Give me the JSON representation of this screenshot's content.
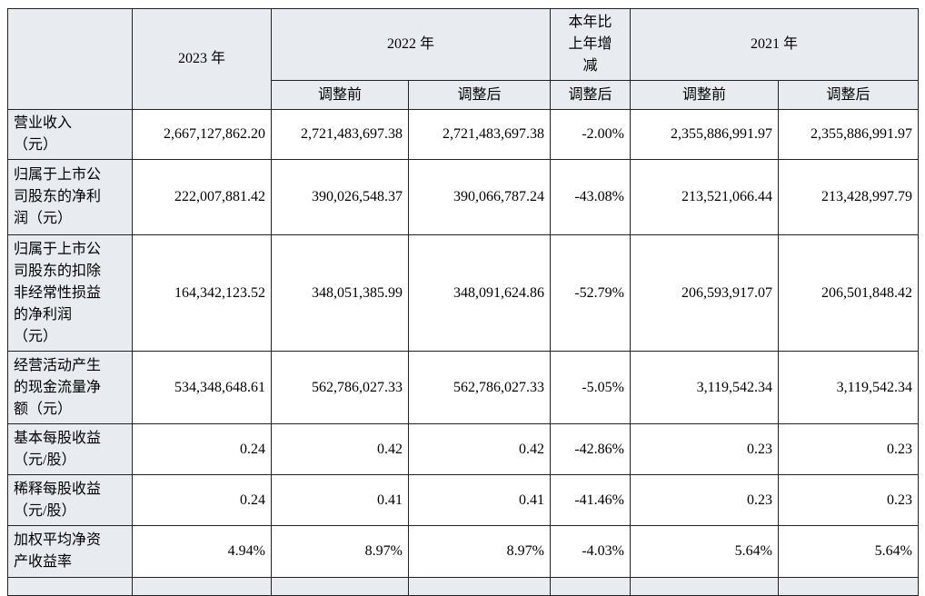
{
  "table": {
    "header": {
      "col_2023": "2023 年",
      "col_2022": "2022 年",
      "col_change": "本年比上年增减",
      "col_2021": "2021 年",
      "sub": [
        "调整前",
        "调整后",
        "调整后",
        "调整前",
        "调整后"
      ]
    },
    "rows": [
      [
        "营业收入（元）",
        "2,667,127,862.20",
        "2,721,483,697.38",
        "2,721,483,697.38",
        "-2.00%",
        "2,355,886,991.97",
        "2,355,886,991.97"
      ],
      [
        "归属于上市公司股东的净利润（元）",
        "222,007,881.42",
        "390,026,548.37",
        "390,066,787.24",
        "-43.08%",
        "213,521,066.44",
        "213,428,997.79"
      ],
      [
        "归属于上市公司股东的扣除非经常性损益的净利润（元）",
        "164,342,123.52",
        "348,051,385.99",
        "348,091,624.86",
        "-52.79%",
        "206,593,917.07",
        "206,501,848.42"
      ],
      [
        "经营活动产生的现金流量净额（元）",
        "534,348,648.61",
        "562,786,027.33",
        "562,786,027.33",
        "-5.05%",
        "3,119,542.34",
        "3,119,542.34"
      ],
      [
        "基本每股收益（元/股）",
        "0.24",
        "0.42",
        "0.42",
        "-42.86%",
        "0.23",
        "0.23"
      ],
      [
        "稀释每股收益（元/股）",
        "0.24",
        "0.41",
        "0.41",
        "-41.46%",
        "0.23",
        "0.23"
      ],
      [
        "加权平均净资产收益率",
        "4.94%",
        "8.97%",
        "8.97%",
        "-4.03%",
        "5.64%",
        "5.64%"
      ]
    ]
  }
}
